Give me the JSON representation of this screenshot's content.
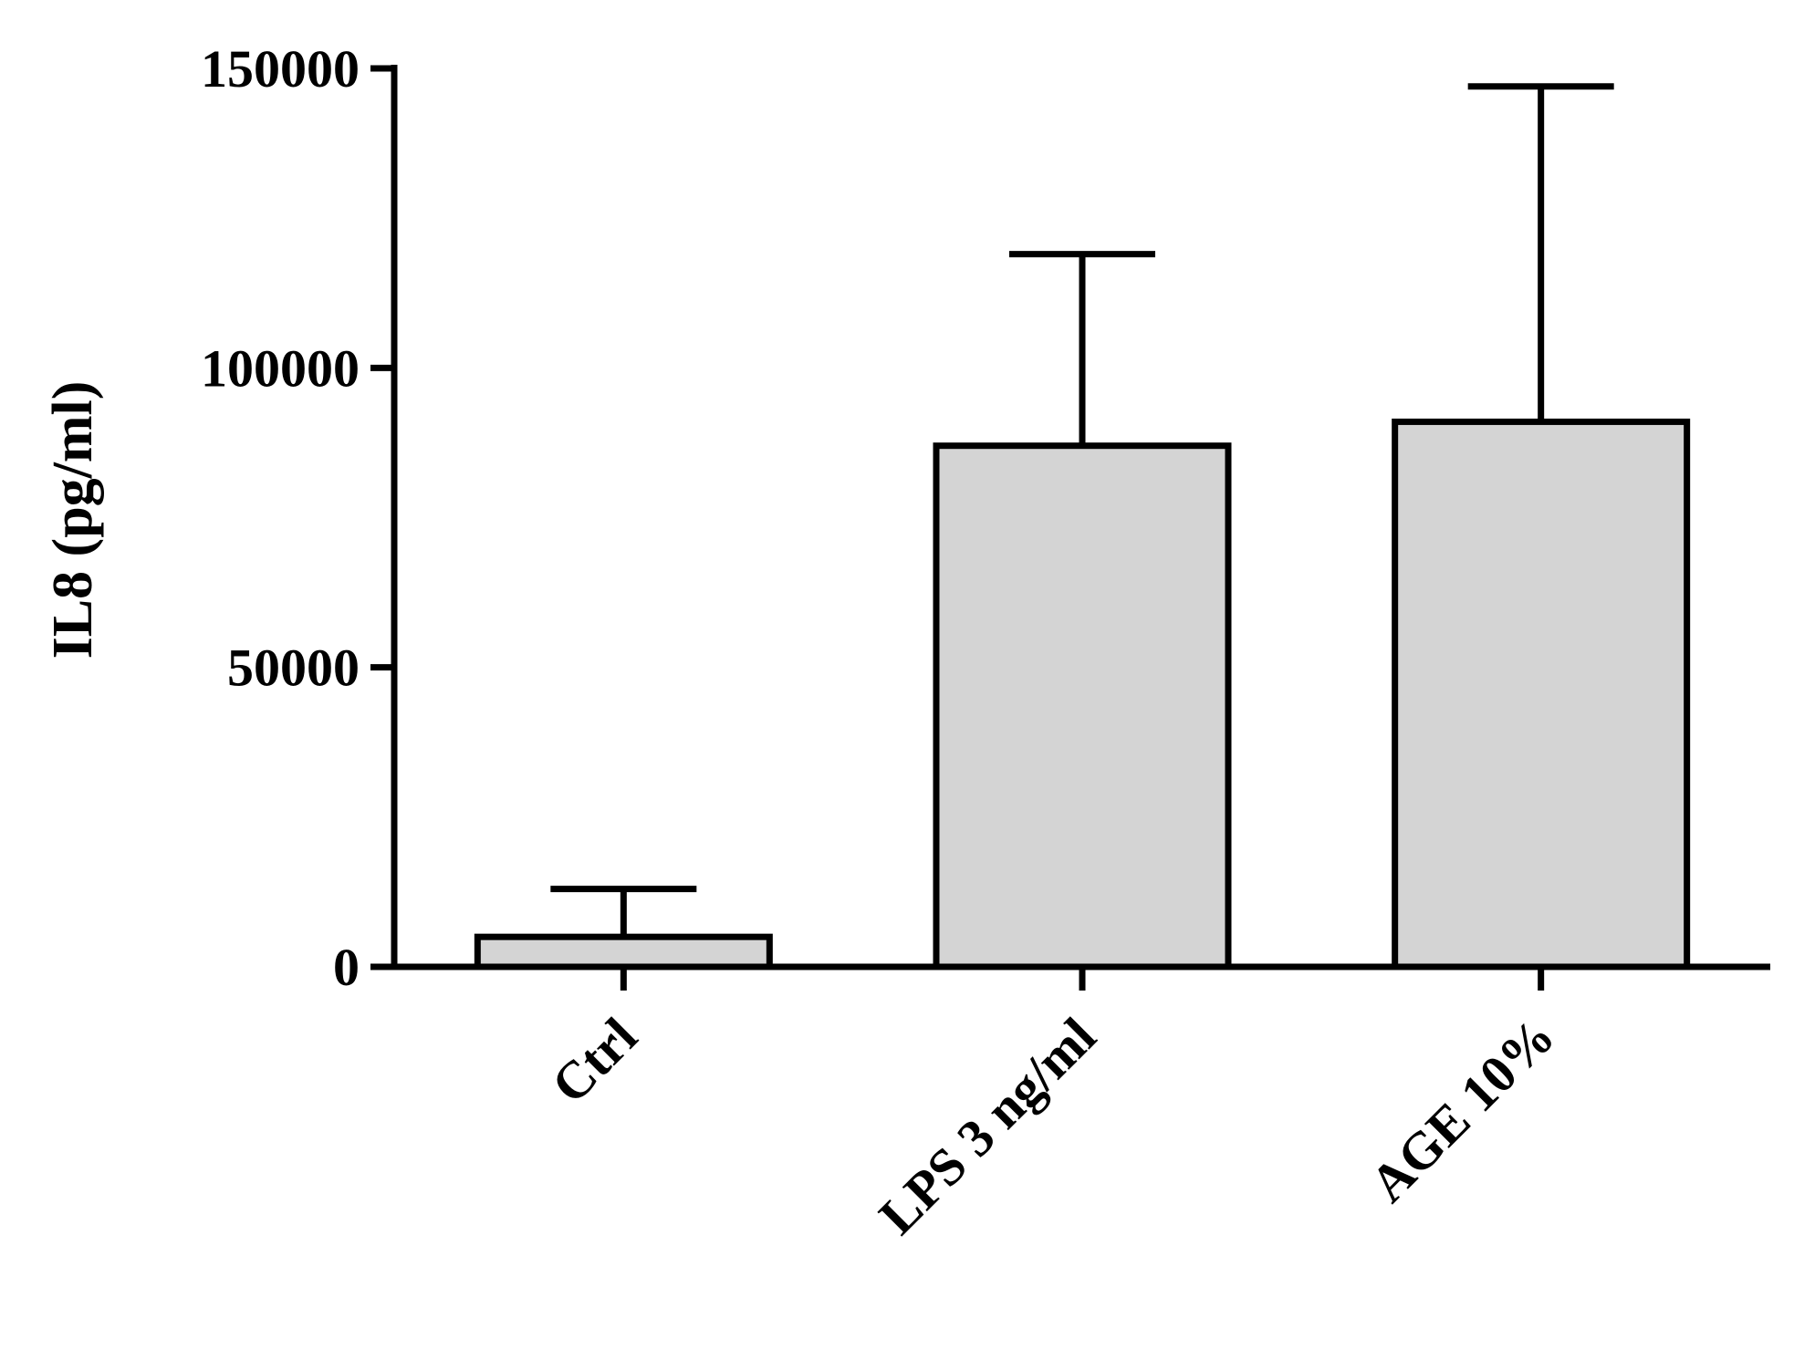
{
  "chart_data": {
    "type": "bar",
    "title": "",
    "xlabel": "",
    "ylabel": "IL8 (pg/ml)",
    "ylim": [
      0,
      150000
    ],
    "yticks": [
      0,
      50000,
      100000,
      150000
    ],
    "categories": [
      "Ctrl",
      "LPS 3 ng/ml",
      "AGE 10%"
    ],
    "values": [
      5000,
      87000,
      91000
    ],
    "error_upper": [
      13000,
      119000,
      147000
    ],
    "grid": false,
    "legend": "none",
    "colors": {
      "bar_fill": "#d4d4d4",
      "stroke": "#000000"
    }
  }
}
